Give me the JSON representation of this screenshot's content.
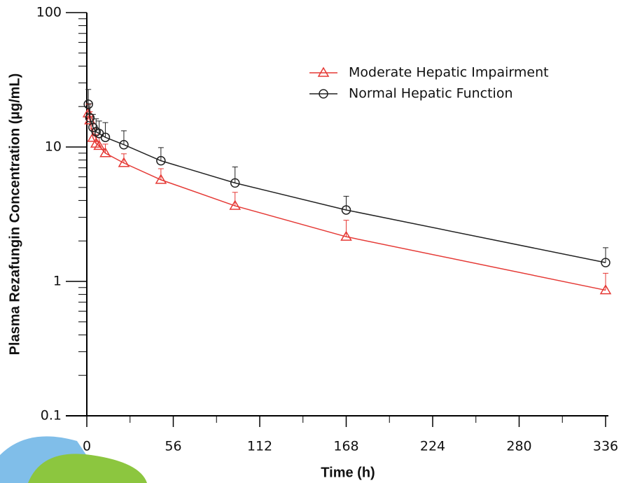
{
  "chart_data": {
    "type": "line",
    "xlabel": "Time (h)",
    "ylabel": "Plasma Rezafungin Concentration (µg/mL)",
    "x": [
      1,
      2,
      4,
      6,
      8,
      12,
      24,
      48,
      96,
      168,
      336
    ],
    "series": [
      {
        "name": "Moderate Hepatic Impairment",
        "color": "#e53935",
        "marker": "triangle",
        "values": [
          17.8,
          15.8,
          11.7,
          10.6,
          10.2,
          9.0,
          7.6,
          5.7,
          3.65,
          2.15,
          0.86
        ],
        "errors": [
          3.0,
          2.5,
          2.0,
          1.8,
          1.6,
          1.5,
          1.3,
          1.2,
          0.95,
          0.7,
          0.29
        ]
      },
      {
        "name": "Normal Hepatic Function",
        "color": "#222222",
        "marker": "circle",
        "values": [
          20.8,
          16.5,
          14.0,
          13.0,
          12.6,
          11.8,
          10.4,
          7.9,
          5.4,
          3.4,
          1.38
        ],
        "errors": [
          6.0,
          4.5,
          3.5,
          3.2,
          3.0,
          3.4,
          2.8,
          2.0,
          1.7,
          0.9,
          0.4
        ]
      }
    ],
    "xlim": [
      0,
      336
    ],
    "xticks": [
      0,
      56,
      112,
      168,
      224,
      280,
      336
    ],
    "ylim": [
      0.1,
      100
    ],
    "yticks": [
      0.1,
      1,
      10,
      100
    ],
    "ylog": true,
    "legend": "upper right"
  }
}
